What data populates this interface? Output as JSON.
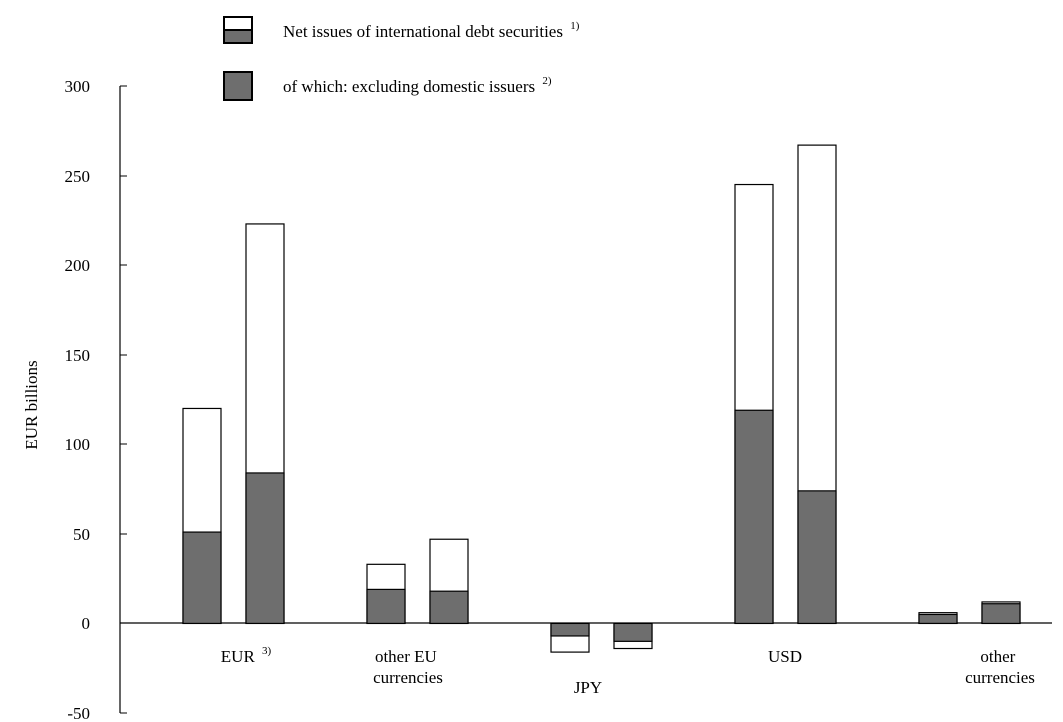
{
  "chart_data": {
    "type": "bar",
    "ylabel": "EUR billions",
    "ylim": [
      -50,
      300
    ],
    "yticks": [
      "300",
      "250",
      "200",
      "150",
      "100",
      "50",
      "0",
      "-50"
    ],
    "categories": [
      {
        "lines": [
          "EUR"
        ],
        "superscript": "3)"
      },
      {
        "lines": [
          "other EU",
          "currencies"
        ]
      },
      {
        "lines": [
          "JPY"
        ]
      },
      {
        "lines": [
          "USD"
        ]
      },
      {
        "lines": [
          "other",
          "currencies"
        ]
      }
    ],
    "legend": [
      {
        "label": "Net issues of international debt securities",
        "superscript": "1)",
        "style": "white-over-grey"
      },
      {
        "label": "of which: excluding domestic issuers",
        "superscript": "2)",
        "style": "grey"
      }
    ],
    "series": [
      {
        "values": [
          [
            120,
            51
          ],
          [
            223,
            84
          ],
          [
            33,
            19
          ],
          [
            47,
            18
          ],
          [
            -16,
            -7
          ],
          [
            -14,
            -10
          ],
          [
            245,
            119
          ],
          [
            267,
            74
          ],
          [
            6,
            5
          ],
          [
            12,
            11
          ]
        ]
      }
    ],
    "colors": {
      "total": "#ffffff",
      "excluding_domestic": "#6e6e6e",
      "stroke": "#000000"
    }
  }
}
